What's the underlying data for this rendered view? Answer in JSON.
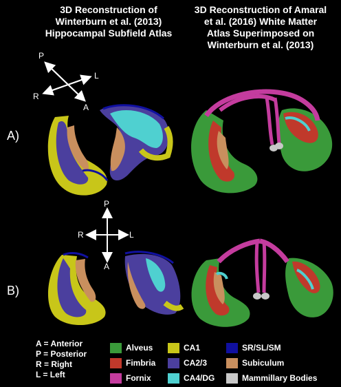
{
  "headers": {
    "left": "3D Reconstruction of\nWinterburn et al. (2013)\nHippocampal Subfield Atlas",
    "right": "3D Reconstruction of Amaral\net al. (2016) White Matter\nAtlas Superimposed on\nWinterburn et al. (2013)"
  },
  "rows": {
    "a": "A)",
    "b": "B)"
  },
  "compass_top": {
    "p": "P",
    "l": "L",
    "r": "R",
    "a": "A"
  },
  "compass_mid": {
    "p": "P",
    "l": "L",
    "r": "R",
    "a": "A"
  },
  "abbreviations": [
    "A = Anterior",
    "P = Posterior",
    "R = Right",
    "L = Left"
  ],
  "legend": {
    "col1": [
      {
        "label": "Alveus",
        "color": "#3a9a3a"
      },
      {
        "label": "Fimbria",
        "color": "#c0392b"
      },
      {
        "label": "Fornix",
        "color": "#c43c9e"
      }
    ],
    "col2": [
      {
        "label": "CA1",
        "color": "#c8c619"
      },
      {
        "label": "CA2/3",
        "color": "#4b3f9e"
      },
      {
        "label": "CA4/DG",
        "color": "#4fd0d0"
      }
    ],
    "col3": [
      {
        "label": "SR/SL/SM",
        "color": "#1010a0"
      },
      {
        "label": "Subiculum",
        "color": "#c98f5e"
      },
      {
        "label": "Mammillary Bodies",
        "color": "#c8c8c8"
      }
    ]
  }
}
